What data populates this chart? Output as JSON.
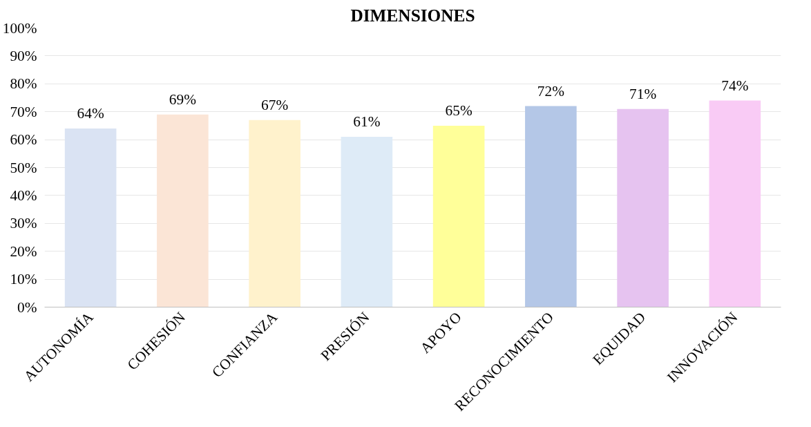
{
  "chart_data": {
    "type": "bar",
    "title": "DIMENSIONES",
    "categories": [
      "AUTONOMÍA",
      "COHESIÓN",
      "CONFIANZA",
      "PRESIÓN",
      "APOYO",
      "RECONOCIMIENTO",
      "EQUIDAD",
      "INNOVACIÓN"
    ],
    "values": [
      64,
      69,
      67,
      61,
      65,
      72,
      71,
      74
    ],
    "colors": [
      "#dae3f3",
      "#fbe5d6",
      "#fff2cc",
      "#deebf7",
      "#ffff99",
      "#b4c7e7",
      "#e6c3f0",
      "#f9cbf5"
    ],
    "value_labels": [
      "64%",
      "69%",
      "67%",
      "61%",
      "65%",
      "72%",
      "71%",
      "74%"
    ],
    "ylim": [
      0,
      100
    ],
    "yticks": [
      {
        "value": 0,
        "label": "0%"
      },
      {
        "value": 10,
        "label": "10%"
      },
      {
        "value": 20,
        "label": "20%"
      },
      {
        "value": 30,
        "label": "30%"
      },
      {
        "value": 40,
        "label": "40%"
      },
      {
        "value": 50,
        "label": "50%"
      },
      {
        "value": 60,
        "label": "60%"
      },
      {
        "value": 70,
        "label": "70%"
      },
      {
        "value": 80,
        "label": "80%"
      },
      {
        "value": 90,
        "label": "90%"
      },
      {
        "value": 100,
        "label": "100%"
      }
    ],
    "grid": "y"
  }
}
